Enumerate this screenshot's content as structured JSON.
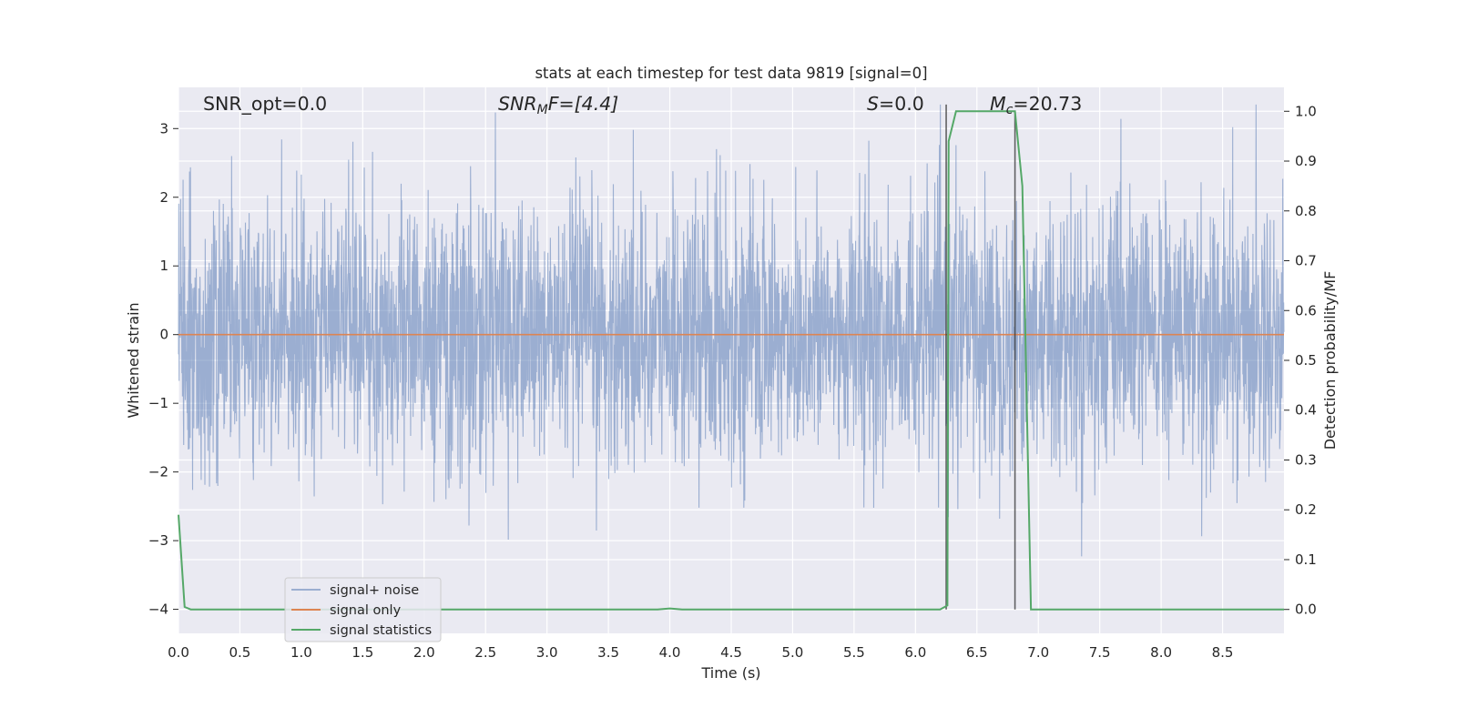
{
  "chart_data": {
    "type": "line",
    "title": "stats at each timestep for test data 9819 [signal=0]",
    "xlabel": "Time (s)",
    "ylabel": "Whitened strain",
    "ylabel_right": "Detection probability/MF",
    "xlim": [
      0.0,
      9.0
    ],
    "ylim": [
      -4.35,
      3.6
    ],
    "ylim_right": [
      -0.048,
      1.048
    ],
    "x_ticks": [
      "0.0",
      "0.5",
      "1.0",
      "1.5",
      "2.0",
      "2.5",
      "3.0",
      "3.5",
      "4.0",
      "4.5",
      "5.0",
      "5.5",
      "6.0",
      "6.5",
      "7.0",
      "7.5",
      "8.0",
      "8.5"
    ],
    "y_ticks": [
      "3",
      "2",
      "1",
      "0",
      "−1",
      "−2",
      "−3",
      "−4"
    ],
    "y_ticks_right": [
      "1.0",
      "0.9",
      "0.8",
      "0.7",
      "0.6",
      "0.5",
      "0.4",
      "0.3",
      "0.2",
      "0.1",
      "0.0"
    ],
    "grid": true,
    "legend_position": "lower-left",
    "annotations": {
      "snr_opt": "SNR_opt=0.0",
      "snr_mf_base": "SNR",
      "snr_mf_sub": "M",
      "snr_mf_rest": "F=[4.4]",
      "s_italic": "S",
      "s_rest": "=0.0",
      "mc_italic": "M",
      "mc_sub": "c",
      "mc_rest": "=20.73"
    },
    "vertical_lines": [
      6.25,
      6.81
    ],
    "series": [
      {
        "name": "signal+ noise",
        "color": "#4c72b0",
        "alpha": 0.5,
        "x_range": [
          0.0,
          9.0
        ],
        "description_values": "noise-like, amplitude mostly within ±2, peaks near ±3.3"
      },
      {
        "name": "signal only",
        "color": "#dd8452",
        "x": [
          0.0,
          9.0
        ],
        "y": [
          0.0,
          0.0
        ]
      },
      {
        "name": "signal statistics",
        "color": "#55a868",
        "axis": "right",
        "x": [
          0.0,
          0.05,
          0.1,
          3.9,
          4.0,
          4.1,
          6.2,
          6.26,
          6.27,
          6.33,
          6.81,
          6.87,
          6.94,
          9.0
        ],
        "y": [
          0.19,
          0.005,
          0.0,
          0.0,
          0.002,
          0.0,
          0.0,
          0.008,
          0.94,
          1.0,
          1.0,
          0.85,
          0.0,
          0.0
        ]
      }
    ]
  }
}
